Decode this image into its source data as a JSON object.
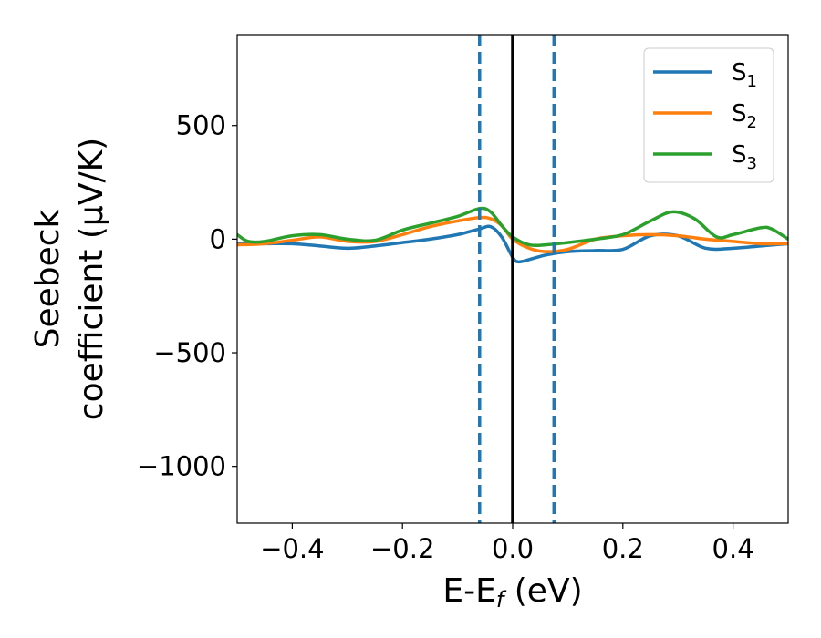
{
  "chart_data": {
    "type": "line",
    "title": "",
    "xlabel": "E-E",
    "xlabel_sub": "f",
    "xlabel_unit": " (eV)",
    "ylabel_line1": "Seebeck",
    "ylabel_line2": "coefficient  (μV/K)",
    "xlim": [
      -0.5,
      0.5
    ],
    "ylim": [
      -1250,
      900
    ],
    "xticks": [
      -0.4,
      -0.2,
      0.0,
      0.2,
      0.4
    ],
    "xtick_labels": [
      "−0.4",
      "−0.2",
      "0.0",
      "0.2",
      "0.4"
    ],
    "yticks": [
      500,
      0,
      -500,
      -1000
    ],
    "ytick_labels": [
      "500",
      "0",
      "−500",
      "−1000"
    ],
    "grid": false,
    "legend_position": "top-right",
    "vertical_lines": [
      {
        "x": -0.06,
        "style": "dashed",
        "color": "#1f77b4"
      },
      {
        "x": 0.0,
        "style": "solid",
        "color": "#000000"
      },
      {
        "x": 0.075,
        "style": "dashed",
        "color": "#1f77b4"
      }
    ],
    "series": [
      {
        "name": "S",
        "name_sub": "1",
        "color": "#1f77b4",
        "x": [
          -0.5,
          -0.45,
          -0.4,
          -0.35,
          -0.3,
          -0.25,
          -0.2,
          -0.15,
          -0.1,
          -0.06,
          -0.04,
          -0.02,
          0.0,
          0.01,
          0.03,
          0.06,
          0.1,
          0.15,
          0.2,
          0.25,
          0.3,
          0.35,
          0.4,
          0.45,
          0.5
        ],
        "y": [
          -20,
          -20,
          -20,
          -30,
          -40,
          -30,
          -15,
          0,
          20,
          45,
          55,
          10,
          -80,
          -100,
          -90,
          -70,
          -55,
          -50,
          -45,
          15,
          15,
          -40,
          -40,
          -30,
          -20
        ]
      },
      {
        "name": "S",
        "name_sub": "2",
        "color": "#ff7f0e",
        "x": [
          -0.5,
          -0.45,
          -0.4,
          -0.35,
          -0.3,
          -0.25,
          -0.2,
          -0.15,
          -0.1,
          -0.06,
          -0.04,
          -0.02,
          0.0,
          0.03,
          0.06,
          0.1,
          0.15,
          0.2,
          0.25,
          0.3,
          0.35,
          0.4,
          0.45,
          0.5
        ],
        "y": [
          -25,
          -20,
          -5,
          10,
          -10,
          -10,
          20,
          55,
          80,
          95,
          90,
          60,
          0,
          -40,
          -55,
          -45,
          0,
          15,
          20,
          15,
          0,
          -10,
          -20,
          -20
        ]
      },
      {
        "name": "S",
        "name_sub": "3",
        "color": "#2ca02c",
        "x": [
          -0.5,
          -0.48,
          -0.45,
          -0.4,
          -0.35,
          -0.3,
          -0.25,
          -0.2,
          -0.15,
          -0.1,
          -0.06,
          -0.04,
          -0.02,
          0.0,
          0.03,
          0.06,
          0.1,
          0.15,
          0.2,
          0.25,
          0.29,
          0.33,
          0.37,
          0.4,
          0.45,
          0.47,
          0.5
        ],
        "y": [
          20,
          -10,
          -10,
          15,
          20,
          0,
          -5,
          40,
          70,
          100,
          135,
          120,
          60,
          10,
          -25,
          -25,
          -15,
          0,
          20,
          80,
          120,
          90,
          10,
          20,
          50,
          45,
          0
        ]
      }
    ]
  }
}
